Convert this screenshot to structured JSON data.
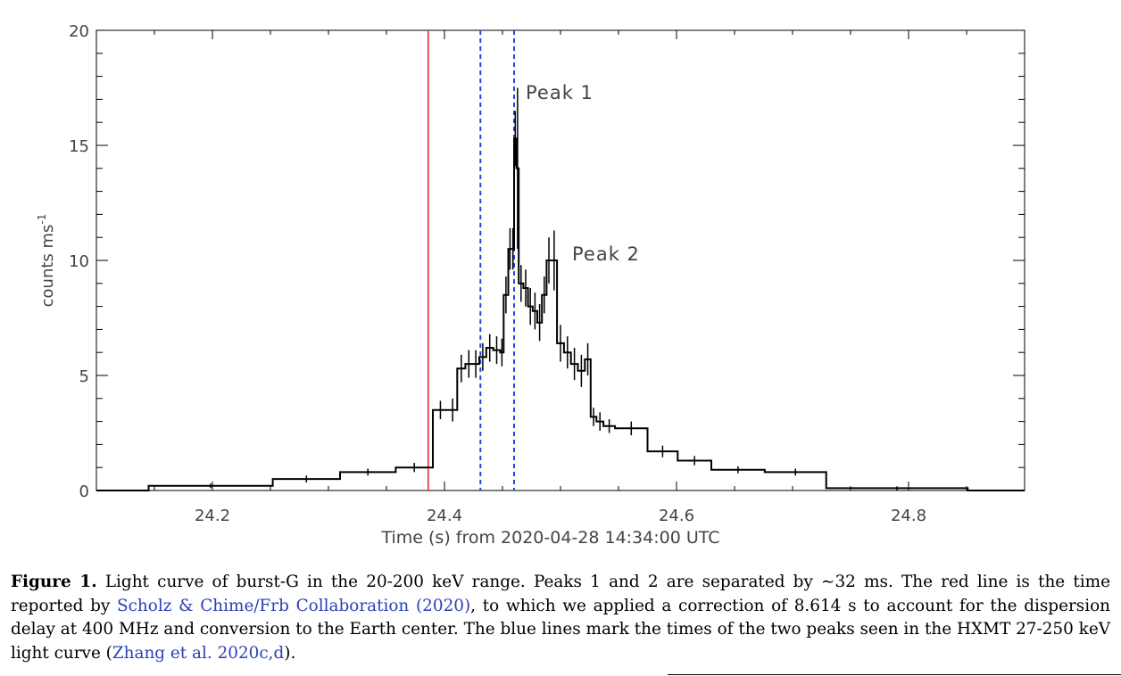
{
  "chart_data": {
    "type": "line",
    "title": "",
    "xlabel": "Time (s) from 2020-04-28 14:34:00 UTC",
    "ylabel": "counts ms",
    "ylabel_superscript": "-1",
    "xlim": [
      24.1,
      24.9
    ],
    "ylim": [
      0,
      20
    ],
    "x_ticks": [
      "24.2",
      "24.4",
      "24.6",
      "24.8"
    ],
    "y_ticks": [
      "0",
      "5",
      "10",
      "15",
      "20"
    ],
    "grid": false,
    "bins": [
      {
        "x0": 24.1,
        "x1": 24.145,
        "y": 0.0,
        "err": 0.0
      },
      {
        "x0": 24.145,
        "x1": 24.252,
        "y": 0.2,
        "err": 0.1
      },
      {
        "x0": 24.252,
        "x1": 24.31,
        "y": 0.5,
        "err": 0.15
      },
      {
        "x0": 24.31,
        "x1": 24.358,
        "y": 0.8,
        "err": 0.15
      },
      {
        "x0": 24.358,
        "x1": 24.39,
        "y": 1.0,
        "err": 0.2
      },
      {
        "x0": 24.39,
        "x1": 24.403,
        "y": 3.5,
        "err": 0.4
      },
      {
        "x0": 24.403,
        "x1": 24.411,
        "y": 3.5,
        "err": 0.5
      },
      {
        "x0": 24.411,
        "x1": 24.418,
        "y": 5.3,
        "err": 0.6
      },
      {
        "x0": 24.418,
        "x1": 24.424,
        "y": 5.5,
        "err": 0.6
      },
      {
        "x0": 24.424,
        "x1": 24.43,
        "y": 5.5,
        "err": 0.6
      },
      {
        "x0": 24.43,
        "x1": 24.436,
        "y": 5.8,
        "err": 0.6
      },
      {
        "x0": 24.436,
        "x1": 24.442,
        "y": 6.2,
        "err": 0.6
      },
      {
        "x0": 24.442,
        "x1": 24.448,
        "y": 6.1,
        "err": 0.6
      },
      {
        "x0": 24.448,
        "x1": 24.451,
        "y": 6.0,
        "err": 0.6
      },
      {
        "x0": 24.451,
        "x1": 24.455,
        "y": 8.5,
        "err": 0.8
      },
      {
        "x0": 24.455,
        "x1": 24.458,
        "y": 10.5,
        "err": 0.9
      },
      {
        "x0": 24.458,
        "x1": 24.46,
        "y": 10.5,
        "err": 0.9
      },
      {
        "x0": 24.46,
        "x1": 24.462,
        "y": 15.3,
        "err": 1.2
      },
      {
        "x0": 24.462,
        "x1": 24.464,
        "y": 14.0,
        "err": 3.5
      },
      {
        "x0": 24.464,
        "x1": 24.468,
        "y": 9.0,
        "err": 0.8
      },
      {
        "x0": 24.468,
        "x1": 24.472,
        "y": 8.8,
        "err": 0.8
      },
      {
        "x0": 24.472,
        "x1": 24.476,
        "y": 8.0,
        "err": 0.8
      },
      {
        "x0": 24.476,
        "x1": 24.48,
        "y": 7.8,
        "err": 0.8
      },
      {
        "x0": 24.48,
        "x1": 24.484,
        "y": 7.3,
        "err": 0.8
      },
      {
        "x0": 24.484,
        "x1": 24.488,
        "y": 8.5,
        "err": 0.8
      },
      {
        "x0": 24.488,
        "x1": 24.492,
        "y": 10.0,
        "err": 1.0
      },
      {
        "x0": 24.492,
        "x1": 24.497,
        "y": 10.0,
        "err": 1.3
      },
      {
        "x0": 24.497,
        "x1": 24.503,
        "y": 6.4,
        "err": 0.8
      },
      {
        "x0": 24.503,
        "x1": 24.509,
        "y": 6.0,
        "err": 0.7
      },
      {
        "x0": 24.509,
        "x1": 24.515,
        "y": 5.5,
        "err": 0.7
      },
      {
        "x0": 24.515,
        "x1": 24.521,
        "y": 5.2,
        "err": 0.7
      },
      {
        "x0": 24.521,
        "x1": 24.526,
        "y": 5.7,
        "err": 0.7
      },
      {
        "x0": 24.526,
        "x1": 24.531,
        "y": 3.2,
        "err": 0.4
      },
      {
        "x0": 24.531,
        "x1": 24.537,
        "y": 3.0,
        "err": 0.4
      },
      {
        "x0": 24.537,
        "x1": 24.547,
        "y": 2.8,
        "err": 0.3
      },
      {
        "x0": 24.547,
        "x1": 24.575,
        "y": 2.7,
        "err": 0.3
      },
      {
        "x0": 24.575,
        "x1": 24.601,
        "y": 1.7,
        "err": 0.25
      },
      {
        "x0": 24.601,
        "x1": 24.63,
        "y": 1.3,
        "err": 0.2
      },
      {
        "x0": 24.63,
        "x1": 24.676,
        "y": 0.9,
        "err": 0.15
      },
      {
        "x0": 24.676,
        "x1": 24.729,
        "y": 0.8,
        "err": 0.15
      },
      {
        "x0": 24.729,
        "x1": 24.851,
        "y": 0.1,
        "err": 0.08
      },
      {
        "x0": 24.851,
        "x1": 24.9,
        "y": 0.0,
        "err": 0.0
      }
    ],
    "vertical_lines": [
      {
        "x": 24.386,
        "color": "#e53030",
        "style": "solid"
      },
      {
        "x": 24.431,
        "color": "#1f48e0",
        "style": "dashed"
      },
      {
        "x": 24.46,
        "color": "#1f48e0",
        "style": "dashed"
      }
    ],
    "annotations": [
      {
        "text": "Peak 1",
        "x": 24.47,
        "y": 17.5
      },
      {
        "text": "Peak 2",
        "x": 24.511,
        "y": 10.5
      }
    ]
  },
  "caption": {
    "label": "Figure 1.",
    "text_1": " Light curve of burst-G in the 20-200 keV range. Peaks 1 and 2 are separated by ∼32 ms. The red line is the time reported by ",
    "cite_1": "Scholz & Chime/Frb Collaboration (2020)",
    "text_2": ", to which we applied a correction of 8.614 s to account for the dispersion delay at 400 MHz and conversion to the Earth center. The blue lines mark the times of the two peaks seen in the HXMT 27-250 keV light curve (",
    "cite_2": "Zhang et al. 2020c,d",
    "text_3": ")."
  }
}
